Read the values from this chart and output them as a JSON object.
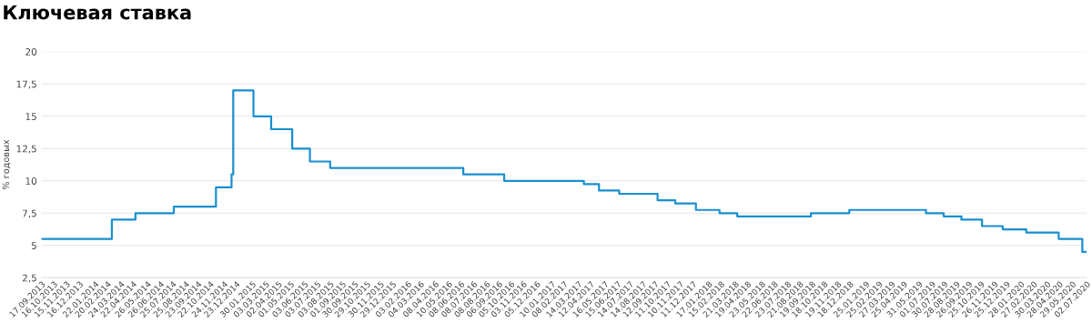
{
  "chart_data": {
    "type": "step",
    "title": "Ключевая ставка",
    "ylabel": "% годовых",
    "x": [
      "2013-09-17",
      "2014-03-03",
      "2014-04-28",
      "2014-07-28",
      "2014-11-05",
      "2014-12-12",
      "2014-12-16",
      "2015-02-02",
      "2015-03-16",
      "2015-05-05",
      "2015-06-16",
      "2015-08-03",
      "2016-06-14",
      "2016-09-19",
      "2017-03-27",
      "2017-05-02",
      "2017-06-19",
      "2017-09-18",
      "2017-10-30",
      "2017-12-18",
      "2018-02-12",
      "2018-03-26",
      "2018-09-17",
      "2018-12-17",
      "2019-06-17",
      "2019-07-29",
      "2019-09-09",
      "2019-10-28",
      "2019-12-16",
      "2020-02-10",
      "2020-04-27",
      "2020-06-22",
      "2020-07-02"
    ],
    "series": [
      {
        "color": "#1a8fd0",
        "values": [
          5.5,
          7,
          7.5,
          8,
          9.5,
          10.5,
          17,
          15,
          14,
          12.5,
          11.5,
          11,
          10.5,
          10,
          9.75,
          9.25,
          9,
          8.5,
          8.25,
          7.75,
          7.5,
          7.25,
          7.5,
          7.75,
          7.5,
          7.25,
          7,
          6.5,
          6.25,
          6,
          5.5,
          4.5,
          4.5
        ]
      }
    ],
    "xlim": [
      "2013-09-17",
      "2020-07-02"
    ],
    "ylim": [
      2.5,
      20
    ],
    "yticks": [
      {
        "value": 2.5,
        "label": "2,5"
      },
      5,
      {
        "value": 7.5,
        "label": "7,5"
      },
      10,
      {
        "value": 12.5,
        "label": "12,5"
      },
      15,
      {
        "value": 17.5,
        "label": "17,5"
      },
      20
    ],
    "xticks": [
      {
        "value": "2013-09-17",
        "label": "17.09.2013"
      },
      {
        "value": "2013-10-16",
        "label": "16.10.2013"
      },
      {
        "value": "2013-11-15",
        "label": "15.11.2013"
      },
      {
        "value": "2013-12-16",
        "label": "16.12.2013"
      },
      {
        "value": "2014-01-22",
        "label": "22.01.2014"
      },
      {
        "value": "2014-02-20",
        "label": "20.02.2014"
      },
      {
        "value": "2014-03-24",
        "label": "24.03.2014"
      },
      {
        "value": "2014-04-22",
        "label": "22.04.2014"
      },
      {
        "value": "2014-05-26",
        "label": "26.05.2014"
      },
      {
        "value": "2014-06-26",
        "label": "26.06.2014"
      },
      {
        "value": "2014-07-25",
        "label": "25.07.2014"
      },
      {
        "value": "2014-08-25",
        "label": "25.08.2014"
      },
      {
        "value": "2014-09-23",
        "label": "23.09.2014"
      },
      {
        "value": "2014-10-22",
        "label": "22.10.2014"
      },
      {
        "value": "2014-11-24",
        "label": "24.11.2014"
      },
      {
        "value": "2014-12-23",
        "label": "23.12.2014"
      },
      {
        "value": "2015-01-30",
        "label": "30.01.2015"
      },
      {
        "value": "2015-03-03",
        "label": "03.03.2015"
      },
      {
        "value": "2015-04-02",
        "label": "02.04.2015"
      },
      {
        "value": "2015-05-01",
        "label": "01.05.2015"
      },
      {
        "value": "2015-06-03",
        "label": "03.06.2015"
      },
      {
        "value": "2015-07-03",
        "label": "03.07.2015"
      },
      {
        "value": "2015-08-03",
        "label": "03.08.2015"
      },
      {
        "value": "2015-09-01",
        "label": "01.09.2015"
      },
      {
        "value": "2015-09-30",
        "label": "30.09.2015"
      },
      {
        "value": "2015-10-29",
        "label": "29.10.2015"
      },
      {
        "value": "2015-11-30",
        "label": "30.11.2015"
      },
      {
        "value": "2015-12-29",
        "label": "29.12.2015"
      },
      {
        "value": "2016-02-03",
        "label": "03.02.2016"
      },
      {
        "value": "2016-03-04",
        "label": "04.03.2016"
      },
      {
        "value": "2016-04-08",
        "label": "08.04.2016"
      },
      {
        "value": "2016-05-10",
        "label": "10.05.2016"
      },
      {
        "value": "2016-06-08",
        "label": "08.06.2016"
      },
      {
        "value": "2016-07-08",
        "label": "08.07.2016"
      },
      {
        "value": "2016-08-08",
        "label": "08.08.2016"
      },
      {
        "value": "2016-09-06",
        "label": "06.09.2016"
      },
      {
        "value": "2016-10-05",
        "label": "05.10.2016"
      },
      {
        "value": "2016-11-03",
        "label": "03.11.2016"
      },
      {
        "value": "2016-12-05",
        "label": "05.12.2016"
      },
      {
        "value": "2017-01-10",
        "label": "10.01.2017"
      },
      {
        "value": "2017-02-08",
        "label": "08.02.2017"
      },
      {
        "value": "2017-03-14",
        "label": "14.03.2017"
      },
      {
        "value": "2017-04-12",
        "label": "12.04.2017"
      },
      {
        "value": "2017-05-16",
        "label": "16.05.2017"
      },
      {
        "value": "2017-06-15",
        "label": "15.06.2017"
      },
      {
        "value": "2017-07-14",
        "label": "14.07.2017"
      },
      {
        "value": "2017-08-14",
        "label": "14.08.2017"
      },
      {
        "value": "2017-09-12",
        "label": "12.09.2017"
      },
      {
        "value": "2017-10-11",
        "label": "11.10.2017"
      },
      {
        "value": "2017-11-10",
        "label": "10.11.2017"
      },
      {
        "value": "2017-12-11",
        "label": "11.12.2017"
      },
      {
        "value": "2018-01-17",
        "label": "17.01.2018"
      },
      {
        "value": "2018-02-15",
        "label": "15.02.2018"
      },
      {
        "value": "2018-03-21",
        "label": "21.03.2018"
      },
      {
        "value": "2018-04-19",
        "label": "19.04.2018"
      },
      {
        "value": "2018-05-23",
        "label": "23.05.2018"
      },
      {
        "value": "2018-06-22",
        "label": "22.06.2018"
      },
      {
        "value": "2018-07-23",
        "label": "23.07.2018"
      },
      {
        "value": "2018-08-21",
        "label": "21.08.2018"
      },
      {
        "value": "2018-09-19",
        "label": "19.09.2018"
      },
      {
        "value": "2018-10-18",
        "label": "18.10.2018"
      },
      {
        "value": "2018-11-19",
        "label": "19.11.2018"
      },
      {
        "value": "2018-12-18",
        "label": "18.12.2018"
      },
      {
        "value": "2019-01-25",
        "label": "25.01.2019"
      },
      {
        "value": "2019-02-25",
        "label": "25.02.2019"
      },
      {
        "value": "2019-03-27",
        "label": "27.03.2019"
      },
      {
        "value": "2019-04-25",
        "label": "25.04.2019"
      },
      {
        "value": "2019-05-31",
        "label": "31.05.2019"
      },
      {
        "value": "2019-07-01",
        "label": "01.07.2019"
      },
      {
        "value": "2019-07-30",
        "label": "30.07.2019"
      },
      {
        "value": "2019-08-28",
        "label": "28.08.2019"
      },
      {
        "value": "2019-09-26",
        "label": "26.09.2019"
      },
      {
        "value": "2019-10-25",
        "label": "25.10.2019"
      },
      {
        "value": "2019-11-26",
        "label": "26.11.2019"
      },
      {
        "value": "2019-12-25",
        "label": "25.12.2019"
      },
      {
        "value": "2020-01-28",
        "label": "28.01.2020"
      },
      {
        "value": "2020-02-27",
        "label": "27.02.2020"
      },
      {
        "value": "2020-03-30",
        "label": "30.03.2020"
      },
      {
        "value": "2020-04-28",
        "label": "28.04.2020"
      },
      {
        "value": "2020-05-29",
        "label": "29.05.2020"
      },
      {
        "value": "2020-07-02",
        "label": "02.07.2020"
      }
    ],
    "grid": "y",
    "legend": false,
    "marker": "none",
    "line_style": "solid"
  }
}
